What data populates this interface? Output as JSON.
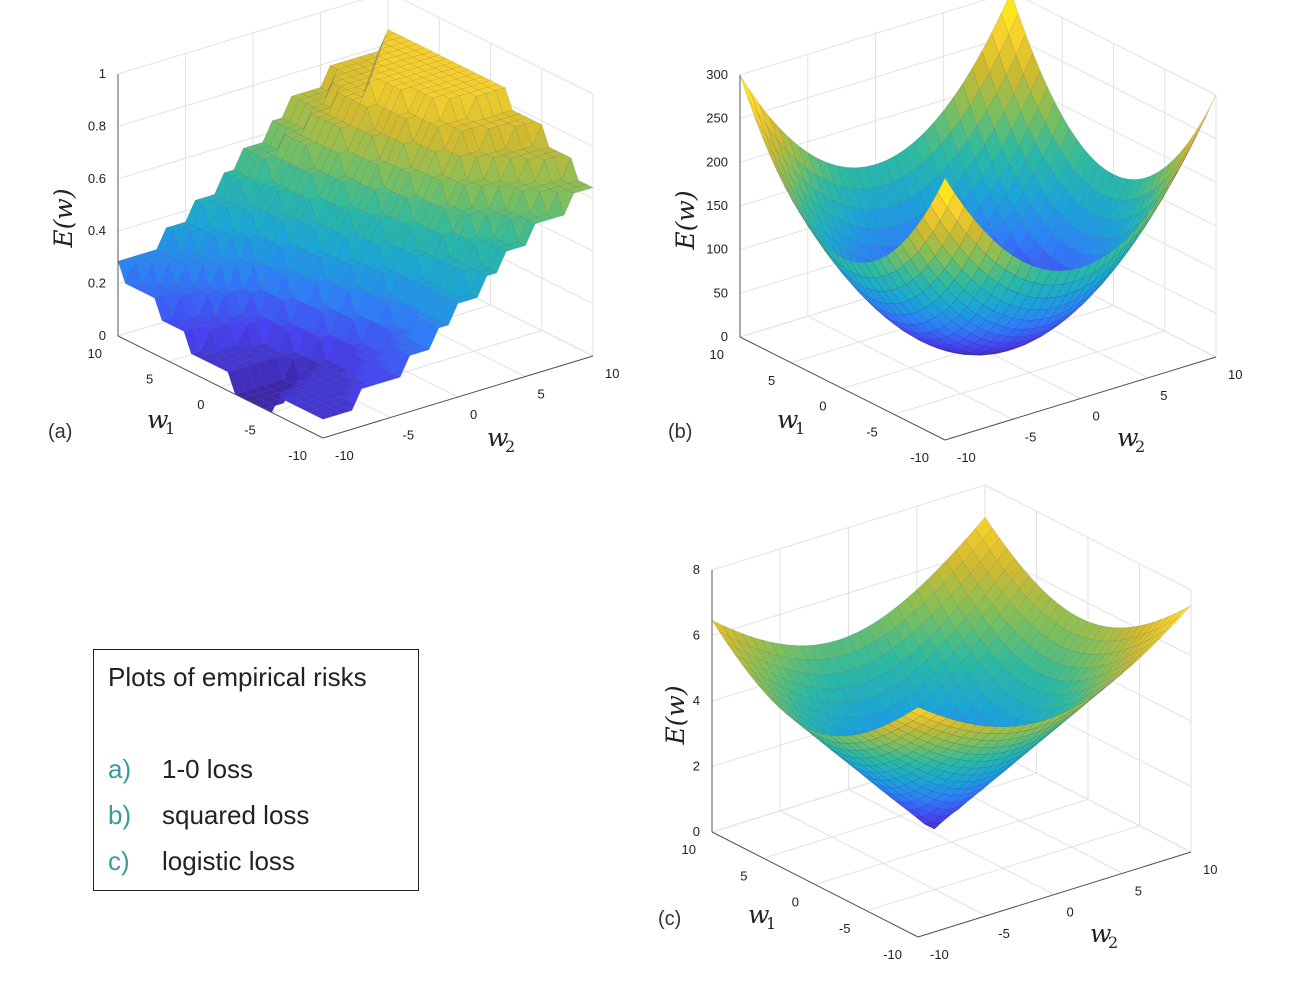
{
  "colors": {
    "colormap": [
      "#3e26a8",
      "#4743f2",
      "#2f7ef8",
      "#1aa6d6",
      "#2cbaa1",
      "#80bf5b",
      "#d0ba30",
      "#fcd32c",
      "#f9fb0e"
    ],
    "grid": "#e2e2e2",
    "axis": "#555555",
    "legend_accent": "#3a9aa0"
  },
  "legend": {
    "title": "Plots of empirical risks",
    "items": [
      {
        "letter": "a)",
        "text": "1-0 loss"
      },
      {
        "letter": "b)",
        "text": "squared loss"
      },
      {
        "letter": "c)",
        "text": "logistic loss"
      }
    ]
  },
  "chart_data": [
    {
      "panel_label": "(a)",
      "type": "surface",
      "surface": "1-0 loss",
      "zlabel": "E(w)",
      "xlabel": "w_1",
      "ylabel": "w_2",
      "xlabel_main": "w",
      "xlabel_sub": "1",
      "ylabel_main": "w",
      "ylabel_sub": "2",
      "w1_ticks": [
        "10",
        "5",
        "0",
        "-5",
        "-10"
      ],
      "w2_ticks": [
        "-10",
        "-5",
        "0",
        "5",
        "10"
      ],
      "z_ticks": [
        "0",
        "0.2",
        "0.4",
        "0.6",
        "0.8",
        "1"
      ],
      "zlim": [
        0,
        1
      ],
      "w1_range": [
        -10,
        10
      ],
      "w2_range": [
        -10,
        10
      ],
      "grid": true
    },
    {
      "panel_label": "(b)",
      "type": "surface",
      "surface": "squared loss",
      "zlabel": "E(w)",
      "xlabel": "w_1",
      "ylabel": "w_2",
      "xlabel_main": "w",
      "xlabel_sub": "1",
      "ylabel_main": "w",
      "ylabel_sub": "2",
      "w1_ticks": [
        "10",
        "5",
        "0",
        "-5",
        "-10"
      ],
      "w2_ticks": [
        "-10",
        "-5",
        "0",
        "5",
        "10"
      ],
      "z_ticks": [
        "0",
        "50",
        "100",
        "150",
        "200",
        "250",
        "300"
      ],
      "zlim": [
        0,
        300
      ],
      "w1_range": [
        -10,
        10
      ],
      "w2_range": [
        -10,
        10
      ],
      "grid": true
    },
    {
      "panel_label": "(c)",
      "type": "surface",
      "surface": "logistic loss",
      "zlabel": "E(w)",
      "xlabel": "w_1",
      "ylabel": "w_2",
      "xlabel_main": "w",
      "xlabel_sub": "1",
      "ylabel_main": "w",
      "ylabel_sub": "2",
      "w1_ticks": [
        "10",
        "5",
        "0",
        "-5",
        "-10"
      ],
      "w2_ticks": [
        "-10",
        "-5",
        "0",
        "5",
        "10"
      ],
      "z_ticks": [
        "0",
        "2",
        "4",
        "6",
        "8"
      ],
      "zlim": [
        0,
        8
      ],
      "w1_range": [
        -10,
        10
      ],
      "w2_range": [
        -10,
        10
      ],
      "grid": true
    }
  ]
}
